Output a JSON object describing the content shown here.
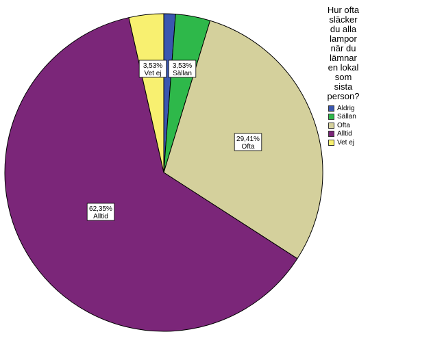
{
  "chart_data": {
    "type": "pie",
    "legend_title_lines": [
      "Hur ofta",
      "släcker",
      "du alla",
      "lampor",
      "när du",
      "lämnar",
      "en lokal",
      "som",
      "sista",
      "person?"
    ],
    "legend_placement": "right",
    "slices": [
      {
        "name": "Aldrig",
        "value": 1.18,
        "color": "#3a57b0",
        "label_pct": ""
      },
      {
        "name": "Sällan",
        "value": 3.53,
        "color": "#2eb84a",
        "label_pct": "3,53%"
      },
      {
        "name": "Ofta",
        "value": 29.41,
        "color": "#d4d09c",
        "label_pct": "29,41%"
      },
      {
        "name": "Alltid",
        "value": 62.35,
        "color": "#7b2679",
        "label_pct": "62,35%"
      },
      {
        "name": "Vet ej",
        "value": 3.53,
        "color": "#f8f070",
        "label_pct": "3,53%"
      }
    ]
  }
}
